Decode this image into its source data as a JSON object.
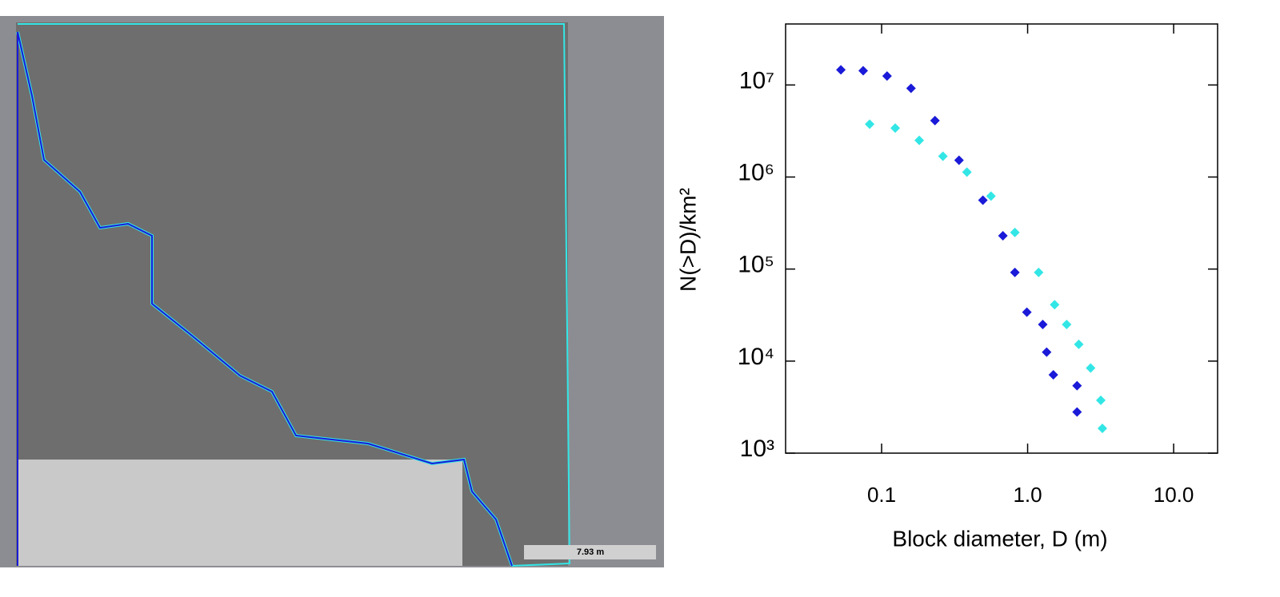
{
  "image": {
    "scale_bar": "7.93 m"
  },
  "chart_data": {
    "type": "scatter",
    "x_label": "Block diameter, D (m)",
    "y_label": "N(>D)/km²",
    "xscale": "log",
    "yscale": "log",
    "xlim": [
      0.022,
      20
    ],
    "ylim": [
      1000,
      46000000
    ],
    "xticks": [
      0.1,
      {
        "value": 1,
        "label": "1.0"
      },
      {
        "value": 10,
        "label": "10.0"
      }
    ],
    "yticks": [
      {
        "value": 1000,
        "label": "10³"
      },
      {
        "value": 10000,
        "label": "10⁴"
      },
      {
        "value": 100000,
        "label": "10⁵"
      },
      {
        "value": 1000000,
        "label": "10⁶"
      },
      {
        "value": 10000000,
        "label": "10⁷"
      }
    ],
    "series": [
      {
        "color": "#1a1ad8",
        "x": [
          0.0526,
          0.0748,
          0.109,
          0.159,
          0.232,
          0.339,
          0.494,
          0.677,
          0.818,
          0.988,
          1.27,
          1.35,
          1.5,
          2.18,
          2.18
        ],
        "values": [
          14600000,
          14300000,
          12500000,
          9200000,
          4100000,
          1520000,
          560000,
          230000,
          92000,
          34000,
          25000,
          12500,
          7100,
          5400,
          2800
        ]
      },
      {
        "color": "#33e6e6",
        "x": [
          0.0828,
          0.124,
          0.181,
          0.263,
          0.384,
          0.561,
          0.818,
          1.19,
          1.53,
          1.85,
          2.24,
          2.7,
          3.17,
          3.25
        ],
        "values": [
          3750000,
          3400000,
          2500000,
          1680000,
          1130000,
          620000,
          250000,
          92000,
          41000,
          25000,
          15200,
          8400,
          3750,
          1860
        ]
      }
    ]
  }
}
